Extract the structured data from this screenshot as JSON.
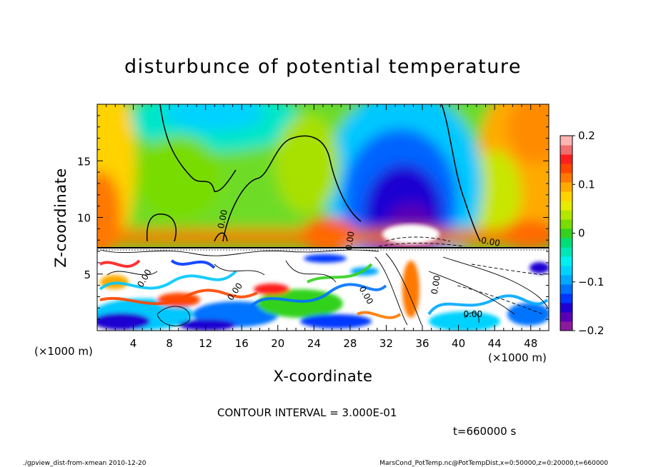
{
  "chart_data": {
    "type": "heatmap",
    "title": "disturbunce of potential temperature",
    "xlabel": "X-coordinate",
    "ylabel": "Z-coordinate",
    "x_unit_left": "(×1000 m)",
    "x_unit_right": "(×1000 m)",
    "xlim": [
      0,
      50
    ],
    "ylim": [
      0,
      20
    ],
    "x_ticks": [
      "4",
      "8",
      "12",
      "16",
      "20",
      "24",
      "28",
      "32",
      "36",
      "40",
      "44",
      "48"
    ],
    "y_ticks": [
      "5",
      "10",
      "15"
    ],
    "colorbar": {
      "ticks": [
        "0.2",
        "0.1",
        "0",
        "−0.1",
        "−0.2"
      ],
      "range": [
        -0.2,
        0.2
      ],
      "colors": [
        "#8c1aa0",
        "#5a00b4",
        "#1e00d2",
        "#0037ff",
        "#0073ff",
        "#00a8ff",
        "#00d2ff",
        "#00f0f0",
        "#00e6b4",
        "#00dc78",
        "#32d21e",
        "#78dc00",
        "#b4e600",
        "#e6eb00",
        "#ffd200",
        "#ffaa00",
        "#ff7800",
        "#ff4600",
        "#ff1e1e",
        "#f06e6e",
        "#ffb4b4"
      ]
    },
    "contour_label": "0.00",
    "contour_interval_text": "CONTOUR INTERVAL = 3.000E-01",
    "time_text": "t=660000 s",
    "grid": false
  },
  "footer": {
    "left": "./gpview_dist-from-xmean  2010-12-20",
    "right": "MarsCond_PotTemp.nc@PotTempDist,x=0:50000,z=0:20000,t=660000"
  }
}
